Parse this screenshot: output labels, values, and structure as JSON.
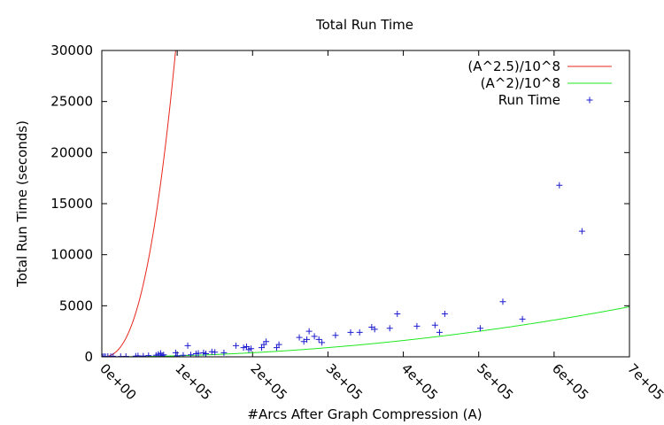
{
  "chart_data": {
    "type": "scatter",
    "title": "Total Run Time",
    "xlabel": "#Arcs After Graph Compression (A)",
    "ylabel": "Total Run Time (seconds)",
    "xlim": [
      0,
      700000
    ],
    "ylim": [
      0,
      30000
    ],
    "x_ticks": [
      0,
      100000,
      200000,
      300000,
      400000,
      500000,
      600000,
      700000
    ],
    "x_tick_labels": [
      "0e+00",
      "1e+05",
      "2e+05",
      "3e+05",
      "4e+05",
      "5e+05",
      "6e+05",
      "7e+05"
    ],
    "y_ticks": [
      0,
      5000,
      10000,
      15000,
      20000,
      25000,
      30000
    ],
    "y_tick_labels": [
      "0",
      "5000",
      "10000",
      "15000",
      "20000",
      "25000",
      "30000"
    ],
    "grid": false,
    "legend_position": "top-right",
    "series": [
      {
        "name": "(A^2.5)/10^8",
        "kind": "function",
        "exponent": 2.5,
        "divisor": 100000000,
        "color": "#e8261d"
      },
      {
        "name": "(A^2)/10^8",
        "kind": "function",
        "exponent": 2,
        "divisor": 100000000,
        "color": "#1ee81e"
      },
      {
        "name": "Run Time",
        "kind": "points",
        "marker": "+",
        "color": "#1c1ccf",
        "points": [
          [
            1000,
            20
          ],
          [
            3000,
            30
          ],
          [
            5000,
            20
          ],
          [
            8000,
            40
          ],
          [
            12000,
            30
          ],
          [
            15000,
            50
          ],
          [
            25000,
            30
          ],
          [
            32000,
            40
          ],
          [
            45000,
            60
          ],
          [
            48000,
            100
          ],
          [
            55000,
            80
          ],
          [
            62000,
            120
          ],
          [
            72000,
            150
          ],
          [
            75000,
            250
          ],
          [
            78000,
            350
          ],
          [
            80000,
            120
          ],
          [
            82000,
            200
          ],
          [
            98000,
            400
          ],
          [
            100000,
            100
          ],
          [
            108000,
            150
          ],
          [
            114000,
            1100
          ],
          [
            118000,
            200
          ],
          [
            125000,
            300
          ],
          [
            128000,
            350
          ],
          [
            135000,
            400
          ],
          [
            138000,
            300
          ],
          [
            146000,
            500
          ],
          [
            150000,
            450
          ],
          [
            162000,
            400
          ],
          [
            178000,
            1100
          ],
          [
            188000,
            900
          ],
          [
            192000,
            1000
          ],
          [
            195000,
            700
          ],
          [
            198000,
            800
          ],
          [
            212000,
            900
          ],
          [
            215000,
            1200
          ],
          [
            218000,
            1500
          ],
          [
            232000,
            900
          ],
          [
            235000,
            1200
          ],
          [
            262000,
            1900
          ],
          [
            268000,
            1500
          ],
          [
            272000,
            1700
          ],
          [
            275000,
            2500
          ],
          [
            282000,
            2000
          ],
          [
            288000,
            1700
          ],
          [
            292000,
            1400
          ],
          [
            310000,
            2100
          ],
          [
            330000,
            2400
          ],
          [
            342000,
            2400
          ],
          [
            358000,
            2900
          ],
          [
            362000,
            2700
          ],
          [
            382000,
            2800
          ],
          [
            392000,
            4200
          ],
          [
            418000,
            3000
          ],
          [
            442000,
            3100
          ],
          [
            448000,
            2400
          ],
          [
            455000,
            4200
          ],
          [
            502000,
            2800
          ],
          [
            532000,
            5400
          ],
          [
            558000,
            3700
          ],
          [
            607000,
            16800
          ],
          [
            637000,
            12300
          ]
        ]
      }
    ]
  }
}
